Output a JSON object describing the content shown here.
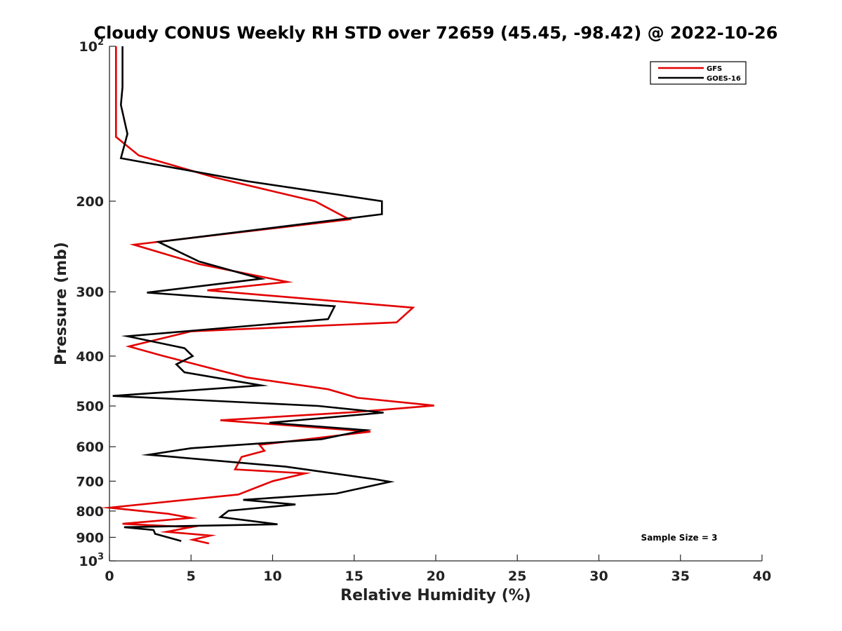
{
  "chart_data": {
    "type": "line",
    "title": "Cloudy CONUS Weekly RH STD over 72659 (45.45, -98.42) @ 2022-10-26",
    "xlabel": "Relative Humidity (%)",
    "ylabel": "Pressure (mb)",
    "xlim": [
      0,
      40
    ],
    "ylim": [
      100,
      1000
    ],
    "y_scale": "log",
    "y_reversed": true,
    "x_ticks": [
      0,
      5,
      10,
      15,
      20,
      25,
      30,
      35,
      40
    ],
    "x_tick_labels": [
      "0",
      "5",
      "10",
      "15",
      "20",
      "25",
      "30",
      "35",
      "40"
    ],
    "y_ticks": [
      100,
      200,
      300,
      400,
      500,
      600,
      700,
      800,
      900,
      1000
    ],
    "y_tick_labels": [
      {
        "base": "10",
        "exp": "2"
      },
      {
        "base": "200",
        "exp": ""
      },
      {
        "base": "300",
        "exp": ""
      },
      {
        "base": "400",
        "exp": ""
      },
      {
        "base": "500",
        "exp": ""
      },
      {
        "base": "600",
        "exp": ""
      },
      {
        "base": "700",
        "exp": ""
      },
      {
        "base": "800",
        "exp": ""
      },
      {
        "base": "900",
        "exp": ""
      },
      {
        "base": "10",
        "exp": "3"
      }
    ],
    "grid": false,
    "legend_position": "top-right",
    "annotation": "Sample Size = 3",
    "series": [
      {
        "name": "GFS",
        "color": "#e30000",
        "points": [
          [
            0.4,
            100
          ],
          [
            0.4,
            115
          ],
          [
            0.4,
            135
          ],
          [
            0.4,
            150
          ],
          [
            1.8,
            163
          ],
          [
            6.5,
            180
          ],
          [
            12.6,
            200
          ],
          [
            14.7,
            217
          ],
          [
            1.5,
            243
          ],
          [
            5.5,
            265
          ],
          [
            10.9,
            287
          ],
          [
            6,
            298
          ],
          [
            18.6,
            322
          ],
          [
            17.6,
            344
          ],
          [
            5,
            358
          ],
          [
            1.2,
            383
          ],
          [
            3.2,
            399
          ],
          [
            8.4,
            440
          ],
          [
            13.4,
            464
          ],
          [
            15.2,
            482
          ],
          [
            19.9,
            499
          ],
          [
            15,
            514
          ],
          [
            6.8,
            533
          ],
          [
            16,
            561
          ],
          [
            9.2,
            595
          ],
          [
            9.5,
            611
          ],
          [
            8.1,
            628
          ],
          [
            7.7,
            664
          ],
          [
            12,
            676
          ],
          [
            10,
            700
          ],
          [
            7.9,
            743
          ],
          [
            0,
            788
          ],
          [
            3.6,
            810
          ],
          [
            5,
            825
          ],
          [
            0.8,
            847
          ],
          [
            5,
            860
          ],
          [
            3.5,
            878
          ],
          [
            6.2,
            893
          ],
          [
            5.1,
            910
          ],
          [
            6.1,
            925
          ]
        ]
      },
      {
        "name": "GOES-16",
        "color": "#000000",
        "points": [
          [
            0.8,
            100
          ],
          [
            0.8,
            120
          ],
          [
            0.7,
            130
          ],
          [
            1.1,
            148
          ],
          [
            0.7,
            165
          ],
          [
            8.5,
            183
          ],
          [
            16.7,
            200
          ],
          [
            16.7,
            212
          ],
          [
            3,
            240
          ],
          [
            5.5,
            262
          ],
          [
            9.3,
            283
          ],
          [
            2.3,
            301
          ],
          [
            13.8,
            320
          ],
          [
            13.4,
            339
          ],
          [
            1.1,
            366
          ],
          [
            4.6,
            386
          ],
          [
            5.1,
            400
          ],
          [
            4.1,
            415
          ],
          [
            4.6,
            430
          ],
          [
            9.3,
            456
          ],
          [
            0.2,
            478
          ],
          [
            12.8,
            500
          ],
          [
            16.8,
            515
          ],
          [
            9.8,
            539
          ],
          [
            15.7,
            557
          ],
          [
            13,
            580
          ],
          [
            5,
            604
          ],
          [
            2.4,
            622
          ],
          [
            10.8,
            656
          ],
          [
            16.3,
            694
          ],
          [
            17.2,
            702
          ],
          [
            13.9,
            740
          ],
          [
            8.2,
            761
          ],
          [
            11.4,
            777
          ],
          [
            7.3,
            799
          ],
          [
            6.8,
            822
          ],
          [
            10.3,
            849
          ],
          [
            0.9,
            860
          ],
          [
            2.7,
            871
          ],
          [
            2.8,
            886
          ],
          [
            4.4,
            915
          ]
        ]
      }
    ]
  }
}
